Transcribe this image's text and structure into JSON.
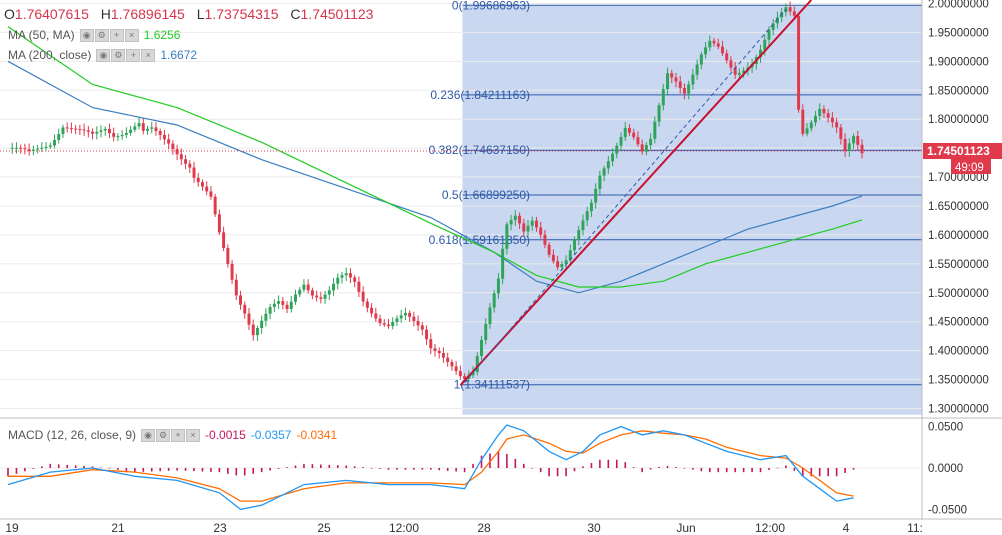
{
  "ohlc": {
    "open_label": "O",
    "open": "1.76407615",
    "high_label": "H",
    "high": "1.76896145",
    "low_label": "L",
    "low": "1.73754315",
    "close_label": "C",
    "close": "1.74501123"
  },
  "indicators": [
    {
      "label": "MA (50, MA)",
      "value": "1.6256",
      "color": "#22cc22"
    },
    {
      "label": "MA (200, close)",
      "value": "1.6672",
      "color": "#3a7fc1"
    }
  ],
  "macd": {
    "label": "MACD (12, 26, close, 9)",
    "hist_value": "-0.0015",
    "macd_value": "-0.0357",
    "signal_value": "-0.0341",
    "hist_color": "#c2185b",
    "macd_color": "#2196f3",
    "signal_color": "#ff6d00"
  },
  "colors": {
    "up": "#2ea45a",
    "down": "#e0394c",
    "fib_zone": "#c9d7f0",
    "fib_line": "#2e5aa8",
    "trend": "#c8102e"
  },
  "chart_data": [
    {
      "type": "candlestick",
      "title": "",
      "price_labels": [
        "2.00000000",
        "1.95000000",
        "1.90000000",
        "1.85000000",
        "1.80000000",
        "1.75000000",
        "1.70000000",
        "1.65000000",
        "1.60000000",
        "1.55000000",
        "1.50000000",
        "1.45000000",
        "1.40000000",
        "1.35000000",
        "1.30000000"
      ],
      "price_ticks": [
        2.0,
        1.95,
        1.9,
        1.85,
        1.8,
        1.75,
        1.7,
        1.65,
        1.6,
        1.55,
        1.5,
        1.45,
        1.4,
        1.35,
        1.3
      ],
      "ylim": [
        1.287,
        2.006
      ],
      "x_tick_labels": [
        "19",
        "21",
        "23",
        "25",
        "12:00",
        "28",
        "30",
        "Jun",
        "12:00",
        "4",
        "11:"
      ],
      "current_price": {
        "value": 1.74501123,
        "label": "1.74501123",
        "countdown": "49:09"
      },
      "fibonacci": [
        {
          "level": "0",
          "price": 1.99686963,
          "label": "0(1.99686963)"
        },
        {
          "level": "0.236",
          "price": 1.84211163,
          "label": "0.236(1.84211163)"
        },
        {
          "level": "0.382",
          "price": 1.7463715,
          "label": "0.382(1.74637150)"
        },
        {
          "level": "0.5",
          "price": 1.6689925,
          "label": "0.5(1.66899250)"
        },
        {
          "level": "0.618",
          "price": 1.5916135,
          "label": "0.618(1.59161350)"
        },
        {
          "level": "1",
          "price": 1.34111537,
          "label": "1(1.34111537)"
        }
      ],
      "close_path": [
        [
          0,
          1.75
        ],
        [
          5,
          1.74
        ],
        [
          10,
          1.76
        ],
        [
          13,
          1.79
        ],
        [
          16,
          1.78
        ],
        [
          20,
          1.77
        ],
        [
          23,
          1.785
        ],
        [
          25,
          1.775
        ],
        [
          28,
          1.78
        ],
        [
          31,
          1.79
        ],
        [
          32,
          1.775
        ],
        [
          34,
          1.78
        ],
        [
          36,
          1.77
        ],
        [
          38,
          1.76
        ],
        [
          40,
          1.745
        ],
        [
          43,
          1.72
        ],
        [
          44,
          1.7
        ],
        [
          46,
          1.68
        ],
        [
          48,
          1.66
        ],
        [
          49,
          1.63
        ],
        [
          50,
          1.6
        ],
        [
          52,
          1.55
        ],
        [
          54,
          1.5
        ],
        [
          56,
          1.47
        ],
        [
          58,
          1.43
        ],
        [
          60,
          1.45
        ],
        [
          62,
          1.47
        ],
        [
          64,
          1.48
        ],
        [
          66,
          1.47
        ],
        [
          68,
          1.5
        ],
        [
          70,
          1.52
        ],
        [
          72,
          1.5
        ],
        [
          74,
          1.49
        ],
        [
          76,
          1.5
        ],
        [
          78,
          1.52
        ],
        [
          80,
          1.53
        ],
        [
          82,
          1.52
        ],
        [
          84,
          1.49
        ],
        [
          86,
          1.47
        ],
        [
          88,
          1.45
        ],
        [
          90,
          1.44
        ],
        [
          92,
          1.45
        ],
        [
          94,
          1.46
        ],
        [
          96,
          1.45
        ],
        [
          98,
          1.44
        ],
        [
          100,
          1.41
        ],
        [
          102,
          1.4
        ],
        [
          104,
          1.38
        ],
        [
          106,
          1.36
        ],
        [
          107,
          1.35
        ],
        [
          108,
          1.345
        ],
        [
          110,
          1.36
        ],
        [
          112,
          1.42
        ],
        [
          114,
          1.48
        ],
        [
          116,
          1.53
        ],
        [
          117,
          1.58
        ],
        [
          118,
          1.62
        ],
        [
          120,
          1.63
        ],
        [
          122,
          1.6
        ],
        [
          124,
          1.62
        ],
        [
          126,
          1.6
        ],
        [
          128,
          1.57
        ],
        [
          130,
          1.55
        ],
        [
          132,
          1.56
        ],
        [
          134,
          1.59
        ],
        [
          136,
          1.62
        ],
        [
          138,
          1.65
        ],
        [
          140,
          1.7
        ],
        [
          142,
          1.73
        ],
        [
          144,
          1.76
        ],
        [
          146,
          1.79
        ],
        [
          148,
          1.77
        ],
        [
          150,
          1.74
        ],
        [
          152,
          1.76
        ],
        [
          154,
          1.82
        ],
        [
          156,
          1.88
        ],
        [
          158,
          1.87
        ],
        [
          160,
          1.85
        ],
        [
          162,
          1.88
        ],
        [
          164,
          1.91
        ],
        [
          166,
          1.93
        ],
        [
          168,
          1.92
        ],
        [
          170,
          1.9
        ],
        [
          172,
          1.88
        ],
        [
          174,
          1.89
        ],
        [
          176,
          1.9
        ],
        [
          178,
          1.92
        ],
        [
          180,
          1.95
        ],
        [
          182,
          1.97
        ],
        [
          184,
          1.99
        ],
        [
          186,
          1.98
        ],
        [
          187,
          1.82
        ],
        [
          188,
          1.78
        ],
        [
          190,
          1.8
        ],
        [
          192,
          1.82
        ],
        [
          194,
          1.8
        ],
        [
          196,
          1.78
        ],
        [
          198,
          1.74
        ],
        [
          200,
          1.77
        ],
        [
          202,
          1.745
        ]
      ],
      "ma50": [
        [
          0,
          1.96
        ],
        [
          20,
          1.86
        ],
        [
          40,
          1.82
        ],
        [
          60,
          1.76
        ],
        [
          80,
          1.69
        ],
        [
          100,
          1.62
        ],
        [
          115,
          1.57
        ],
        [
          125,
          1.53
        ],
        [
          135,
          1.51
        ],
        [
          145,
          1.51
        ],
        [
          155,
          1.52
        ],
        [
          165,
          1.55
        ],
        [
          175,
          1.57
        ],
        [
          185,
          1.59
        ],
        [
          195,
          1.61
        ],
        [
          202,
          1.626
        ]
      ],
      "ma200": [
        [
          0,
          1.9
        ],
        [
          20,
          1.82
        ],
        [
          40,
          1.79
        ],
        [
          60,
          1.73
        ],
        [
          80,
          1.68
        ],
        [
          100,
          1.63
        ],
        [
          115,
          1.57
        ],
        [
          125,
          1.52
        ],
        [
          135,
          1.5
        ],
        [
          145,
          1.52
        ],
        [
          155,
          1.55
        ],
        [
          165,
          1.58
        ],
        [
          175,
          1.61
        ],
        [
          185,
          1.63
        ],
        [
          195,
          1.65
        ],
        [
          202,
          1.667
        ]
      ],
      "trendlines": [
        {
          "style": "solid",
          "from": [
            107,
            1.34
          ],
          "to": [
            190,
            2.006
          ]
        },
        {
          "style": "dashed",
          "from": [
            108,
            1.345
          ],
          "to": [
            184,
            1.99
          ]
        }
      ]
    },
    {
      "type": "line",
      "title": "",
      "y_tick_labels": [
        "0.0500",
        "0.0000",
        "-0.0500"
      ],
      "y_ticks": [
        0.05,
        0.0,
        -0.05
      ],
      "ylim": [
        -0.058,
        0.058
      ],
      "series": [
        {
          "key": "macd",
          "values": [
            [
              0,
              -0.02
            ],
            [
              10,
              -0.005
            ],
            [
              20,
              0.0
            ],
            [
              30,
              -0.01
            ],
            [
              40,
              -0.015
            ],
            [
              50,
              -0.03
            ],
            [
              55,
              -0.05
            ],
            [
              60,
              -0.045
            ],
            [
              70,
              -0.02
            ],
            [
              80,
              -0.015
            ],
            [
              90,
              -0.02
            ],
            [
              100,
              -0.02
            ],
            [
              108,
              -0.025
            ],
            [
              112,
              0.01
            ],
            [
              116,
              0.04
            ],
            [
              118,
              0.052
            ],
            [
              122,
              0.045
            ],
            [
              128,
              0.02
            ],
            [
              132,
              0.01
            ],
            [
              136,
              0.02
            ],
            [
              140,
              0.04
            ],
            [
              145,
              0.05
            ],
            [
              150,
              0.04
            ],
            [
              155,
              0.045
            ],
            [
              160,
              0.04
            ],
            [
              165,
              0.03
            ],
            [
              170,
              0.02
            ],
            [
              178,
              0.01
            ],
            [
              184,
              0.015
            ],
            [
              188,
              -0.01
            ],
            [
              192,
              -0.025
            ],
            [
              196,
              -0.04
            ],
            [
              200,
              -0.036
            ]
          ]
        },
        {
          "key": "signal",
          "values": [
            [
              0,
              -0.01
            ],
            [
              10,
              -0.01
            ],
            [
              20,
              -0.002
            ],
            [
              30,
              -0.005
            ],
            [
              40,
              -0.012
            ],
            [
              50,
              -0.025
            ],
            [
              55,
              -0.04
            ],
            [
              60,
              -0.04
            ],
            [
              70,
              -0.025
            ],
            [
              80,
              -0.018
            ],
            [
              90,
              -0.018
            ],
            [
              100,
              -0.018
            ],
            [
              108,
              -0.02
            ],
            [
              112,
              -0.005
            ],
            [
              116,
              0.02
            ],
            [
              118,
              0.035
            ],
            [
              122,
              0.04
            ],
            [
              128,
              0.03
            ],
            [
              132,
              0.02
            ],
            [
              136,
              0.018
            ],
            [
              140,
              0.03
            ],
            [
              145,
              0.04
            ],
            [
              150,
              0.045
            ],
            [
              155,
              0.042
            ],
            [
              160,
              0.04
            ],
            [
              165,
              0.035
            ],
            [
              170,
              0.025
            ],
            [
              178,
              0.015
            ],
            [
              184,
              0.012
            ],
            [
              188,
              0.0
            ],
            [
              192,
              -0.015
            ],
            [
              196,
              -0.03
            ],
            [
              200,
              -0.034
            ]
          ]
        }
      ]
    }
  ]
}
